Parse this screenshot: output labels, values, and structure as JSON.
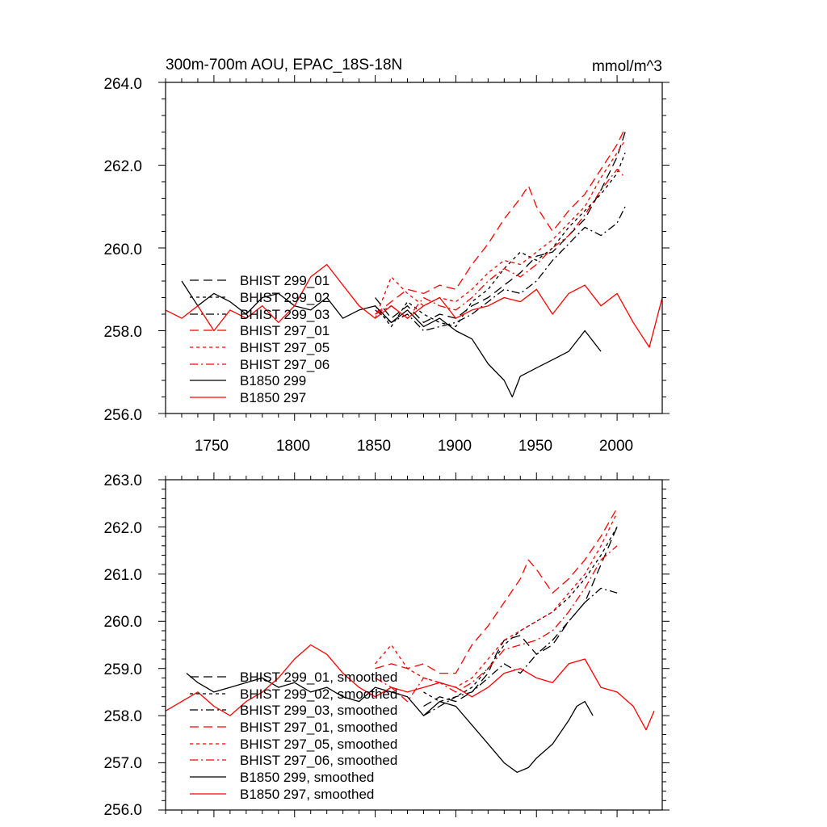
{
  "colors": {
    "black": "#000000",
    "red": "#ff0000"
  },
  "chart_data": [
    {
      "type": "line",
      "title": "300m-700m AOU, EPAC_18S-18N",
      "units": "mmol/m^3",
      "xlim": [
        1720,
        2028
      ],
      "ylim": [
        256.0,
        264.0
      ],
      "x_ticks": [
        1750,
        1800,
        1850,
        1900,
        1950,
        2000
      ],
      "x_tick_labels": [
        "1750",
        "1800",
        "1850",
        "1900",
        "1950",
        "2000"
      ],
      "y_ticks": [
        256,
        258,
        260,
        262,
        264
      ],
      "y_tick_labels": [
        "256.0",
        "258.0",
        "260.0",
        "262.0",
        "264.0"
      ],
      "legend": [
        "BHIST 299_01",
        "BHIST 299_02",
        "BHIST 299_03",
        "BHIST 297_01",
        "BHIST 297_05",
        "BHIST 297_06",
        "B1850 299",
        "B1850 297"
      ],
      "series": [
        {
          "name": "BHIST 299_01",
          "color": "#000000",
          "dash": "long",
          "x": [
            1850,
            1860,
            1870,
            1880,
            1890,
            1900,
            1910,
            1920,
            1930,
            1940,
            1950,
            1960,
            1970,
            1980,
            1990,
            2000,
            2005
          ],
          "y": [
            258.8,
            258.3,
            258.6,
            258.2,
            258.4,
            258.3,
            258.6,
            258.8,
            259.1,
            259.4,
            259.8,
            259.9,
            260.3,
            260.7,
            261.4,
            262.2,
            262.8
          ]
        },
        {
          "name": "BHIST 299_02",
          "color": "#000000",
          "dash": "short",
          "x": [
            1850,
            1860,
            1870,
            1880,
            1890,
            1900,
            1910,
            1920,
            1930,
            1940,
            1950,
            1960,
            1970,
            1980,
            1990,
            2000,
            2005
          ],
          "y": [
            258.6,
            258.1,
            258.7,
            258.4,
            258.2,
            258.1,
            258.7,
            259.0,
            259.5,
            259.9,
            259.7,
            260.0,
            260.5,
            260.9,
            261.3,
            261.8,
            262.3
          ]
        },
        {
          "name": "BHIST 299_03",
          "color": "#000000",
          "dash": "dashdot",
          "x": [
            1850,
            1860,
            1870,
            1880,
            1890,
            1900,
            1910,
            1920,
            1930,
            1940,
            1950,
            1960,
            1970,
            1980,
            1990,
            2000,
            2005
          ],
          "y": [
            258.5,
            258.2,
            258.4,
            258.0,
            258.1,
            258.2,
            258.4,
            258.7,
            259.0,
            258.9,
            259.2,
            259.7,
            260.1,
            260.5,
            260.3,
            260.6,
            261.0
          ]
        },
        {
          "name": "BHIST 297_01",
          "color": "#ff0000",
          "dash": "long",
          "x": [
            1850,
            1860,
            1870,
            1880,
            1890,
            1900,
            1910,
            1920,
            1930,
            1940,
            1945,
            1950,
            1960,
            1970,
            1980,
            1990,
            2000,
            2005
          ],
          "y": [
            258.4,
            258.7,
            259.0,
            258.9,
            259.1,
            259.0,
            259.6,
            260.1,
            260.7,
            261.2,
            261.5,
            261.0,
            260.4,
            260.9,
            261.3,
            261.9,
            262.5,
            262.9
          ]
        },
        {
          "name": "BHIST 297_05",
          "color": "#ff0000",
          "dash": "short",
          "x": [
            1850,
            1860,
            1870,
            1880,
            1890,
            1900,
            1910,
            1920,
            1930,
            1940,
            1950,
            1960,
            1970,
            1980,
            1990,
            2000,
            2005
          ],
          "y": [
            258.3,
            259.3,
            258.9,
            258.6,
            258.8,
            258.7,
            259.0,
            259.4,
            259.7,
            259.6,
            259.9,
            260.2,
            260.6,
            261.0,
            261.7,
            262.3,
            262.6
          ]
        },
        {
          "name": "BHIST 297_06",
          "color": "#ff0000",
          "dash": "dashdot",
          "x": [
            1850,
            1860,
            1870,
            1880,
            1890,
            1900,
            1910,
            1920,
            1930,
            1940,
            1950,
            1960,
            1970,
            1980,
            1990,
            2000,
            2005
          ],
          "y": [
            258.4,
            258.6,
            258.3,
            258.8,
            258.6,
            258.5,
            258.8,
            259.2,
            259.5,
            259.3,
            259.6,
            260.0,
            260.3,
            260.8,
            261.4,
            261.9,
            261.7
          ]
        },
        {
          "name": "B1850 299",
          "color": "#000000",
          "dash": "solid",
          "x": [
            1730,
            1740,
            1750,
            1760,
            1770,
            1780,
            1790,
            1800,
            1810,
            1820,
            1830,
            1840,
            1850,
            1860,
            1870,
            1880,
            1890,
            1900,
            1910,
            1920,
            1930,
            1935,
            1940,
            1950,
            1960,
            1970,
            1980,
            1990
          ],
          "y": [
            259.2,
            258.6,
            258.9,
            258.7,
            258.4,
            258.8,
            258.9,
            258.6,
            258.5,
            258.8,
            258.3,
            258.5,
            258.6,
            258.2,
            258.5,
            258.1,
            258.3,
            258.0,
            257.8,
            257.2,
            256.8,
            256.4,
            256.9,
            257.1,
            257.3,
            257.5,
            258.0,
            257.5
          ]
        },
        {
          "name": "B1850 297",
          "color": "#ff0000",
          "dash": "solid",
          "x": [
            1720,
            1730,
            1740,
            1750,
            1760,
            1770,
            1780,
            1790,
            1800,
            1810,
            1820,
            1830,
            1840,
            1850,
            1860,
            1870,
            1880,
            1890,
            1900,
            1910,
            1920,
            1930,
            1940,
            1950,
            1960,
            1970,
            1980,
            1990,
            2000,
            2010,
            2020,
            2028
          ],
          "y": [
            258.5,
            258.3,
            258.6,
            258.0,
            258.5,
            258.3,
            258.6,
            258.2,
            258.6,
            259.3,
            259.6,
            259.1,
            258.6,
            258.3,
            258.6,
            258.3,
            258.6,
            258.8,
            258.3,
            258.5,
            258.6,
            258.8,
            258.7,
            259.0,
            258.4,
            258.9,
            259.1,
            258.6,
            258.9,
            258.2,
            257.6,
            258.8
          ]
        }
      ]
    },
    {
      "type": "line",
      "xlim": [
        1720,
        2028
      ],
      "ylim": [
        256.0,
        263.0
      ],
      "x_ticks": [
        1750,
        1800,
        1850,
        1900,
        1950,
        2000
      ],
      "y_ticks": [
        256,
        257,
        258,
        259,
        260,
        261,
        262,
        263
      ],
      "y_tick_labels": [
        "256.0",
        "257.0",
        "258.0",
        "259.0",
        "260.0",
        "261.0",
        "262.0",
        "263.0"
      ],
      "legend": [
        "BHIST 299_01, smoothed",
        "BHIST 299_02, smoothed",
        "BHIST 299_03, smoothed",
        "BHIST 297_01, smoothed",
        "BHIST 297_05, smoothed",
        "BHIST 297_06, smoothed",
        "B1850 299, smoothed",
        "B1850 297, smoothed"
      ],
      "series": [
        {
          "name": "BHIST 299_01, smoothed",
          "color": "#000000",
          "dash": "long",
          "x": [
            1880,
            1890,
            1900,
            1910,
            1920,
            1925,
            1930,
            1940,
            1950,
            1960,
            1970,
            1980,
            1985,
            1990,
            2000
          ],
          "y": [
            258.2,
            258.4,
            258.3,
            258.5,
            258.9,
            259.3,
            259.6,
            259.7,
            259.3,
            259.5,
            260.0,
            260.4,
            260.8,
            261.2,
            262.0
          ]
        },
        {
          "name": "BHIST 299_02, smoothed",
          "color": "#000000",
          "dash": "short",
          "x": [
            1880,
            1890,
            1900,
            1910,
            1920,
            1930,
            1940,
            1950,
            1960,
            1970,
            1980,
            1990,
            2000
          ],
          "y": [
            258.5,
            258.3,
            258.4,
            258.6,
            259.0,
            259.5,
            259.8,
            260.0,
            260.2,
            260.5,
            260.9,
            261.4,
            262.0
          ]
        },
        {
          "name": "BHIST 299_03, smoothed",
          "color": "#000000",
          "dash": "dashdot",
          "x": [
            1880,
            1890,
            1900,
            1910,
            1920,
            1930,
            1940,
            1950,
            1960,
            1970,
            1980,
            1990,
            2000
          ],
          "y": [
            258.0,
            258.2,
            258.4,
            258.5,
            258.8,
            259.1,
            258.9,
            259.3,
            259.6,
            260.0,
            260.4,
            260.7,
            260.6
          ]
        },
        {
          "name": "BHIST 297_01, smoothed",
          "color": "#ff0000",
          "dash": "long",
          "x": [
            1850,
            1860,
            1870,
            1880,
            1890,
            1900,
            1910,
            1920,
            1930,
            1940,
            1945,
            1950,
            1960,
            1970,
            1980,
            1990,
            2000
          ],
          "y": [
            259.0,
            259.1,
            259.0,
            259.1,
            258.9,
            258.9,
            259.5,
            259.9,
            260.4,
            260.9,
            261.3,
            261.1,
            260.6,
            260.9,
            261.3,
            261.8,
            262.4
          ]
        },
        {
          "name": "BHIST 297_05, smoothed",
          "color": "#ff0000",
          "dash": "short",
          "x": [
            1850,
            1860,
            1870,
            1880,
            1890,
            1900,
            1910,
            1920,
            1930,
            1940,
            1950,
            1960,
            1970,
            1980,
            1990,
            2000
          ],
          "y": [
            259.1,
            259.5,
            259.0,
            258.8,
            258.7,
            258.6,
            258.8,
            259.2,
            259.6,
            259.8,
            260.0,
            260.2,
            260.6,
            261.0,
            261.6,
            262.3
          ]
        },
        {
          "name": "BHIST 297_06, smoothed",
          "color": "#ff0000",
          "dash": "dashdot",
          "x": [
            1850,
            1860,
            1870,
            1880,
            1890,
            1900,
            1910,
            1920,
            1930,
            1940,
            1950,
            1960,
            1970,
            1980,
            1990,
            2000
          ],
          "y": [
            258.8,
            258.6,
            258.3,
            258.8,
            258.7,
            258.5,
            258.7,
            259.0,
            259.4,
            259.5,
            259.6,
            259.8,
            260.2,
            260.7,
            261.3,
            261.6
          ]
        },
        {
          "name": "B1850 299, smoothed",
          "color": "#000000",
          "dash": "solid",
          "x": [
            1733,
            1740,
            1750,
            1760,
            1770,
            1780,
            1790,
            1800,
            1810,
            1820,
            1830,
            1840,
            1850,
            1860,
            1870,
            1880,
            1890,
            1900,
            1910,
            1920,
            1930,
            1938,
            1945,
            1950,
            1960,
            1970,
            1975,
            1980,
            1985
          ],
          "y": [
            258.9,
            258.7,
            258.5,
            258.6,
            258.7,
            258.8,
            258.6,
            258.7,
            258.5,
            258.6,
            258.4,
            258.3,
            258.6,
            258.5,
            258.4,
            258.0,
            258.3,
            258.2,
            257.8,
            257.4,
            257.0,
            256.8,
            256.9,
            257.1,
            257.4,
            257.9,
            258.2,
            258.3,
            258.0
          ]
        },
        {
          "name": "B1850 297, smoothed",
          "color": "#ff0000",
          "dash": "solid",
          "x": [
            1720,
            1730,
            1740,
            1750,
            1760,
            1770,
            1780,
            1790,
            1800,
            1810,
            1820,
            1830,
            1840,
            1850,
            1860,
            1870,
            1880,
            1890,
            1900,
            1910,
            1920,
            1930,
            1940,
            1950,
            1960,
            1970,
            1980,
            1990,
            2000,
            2010,
            2018,
            2023
          ],
          "y": [
            258.1,
            258.3,
            258.5,
            258.2,
            258.0,
            258.3,
            258.5,
            258.8,
            259.2,
            259.5,
            259.3,
            258.9,
            258.6,
            258.4,
            258.6,
            258.5,
            258.6,
            258.7,
            258.6,
            258.4,
            258.6,
            258.9,
            259.0,
            258.8,
            258.7,
            259.1,
            259.2,
            258.6,
            258.5,
            258.2,
            257.7,
            258.1
          ]
        }
      ]
    }
  ]
}
